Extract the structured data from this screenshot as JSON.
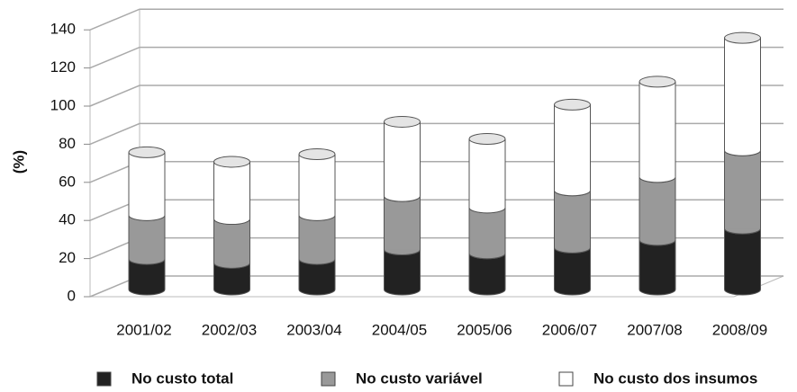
{
  "chart_data": {
    "type": "bar",
    "stacked": true,
    "ylabel": "(%)",
    "categories": [
      "2001/02",
      "2002/03",
      "2003/04",
      "2004/05",
      "2005/06",
      "2006/07",
      "2007/08",
      "2008/09"
    ],
    "series": [
      {
        "name": "No custo total",
        "color": "#222222",
        "values": [
          16,
          14,
          16,
          21,
          19,
          22,
          26,
          32
        ]
      },
      {
        "name": "No custo variável",
        "color": "#999999",
        "values": [
          23,
          23,
          23,
          28,
          24,
          30,
          33,
          41
        ]
      },
      {
        "name": "No custo dos insumos",
        "color": "#ffffff",
        "values": [
          33,
          30,
          32,
          39,
          36,
          45,
          50,
          59
        ]
      }
    ],
    "ylim": [
      0,
      140
    ],
    "yticks": [
      0,
      20,
      40,
      60,
      80,
      100,
      120,
      140
    ],
    "grid": true
  }
}
